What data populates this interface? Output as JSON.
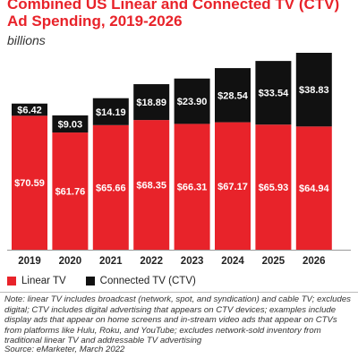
{
  "header": {
    "title": "Combined US Linear and Connected TV (CTV) Ad Spending, 2019-2026",
    "subtitle": "billions"
  },
  "legend": {
    "linear_label": "Linear TV",
    "ctv_label": "Connected TV (CTV)"
  },
  "footer": {
    "note": "Note: linear TV includes broadcast (network, spot, and syndication) and cable TV; excludes digital; CTV includes digital advertising that appears on CTV devices; examples include display ads that appear on home screens and in-stream video ads that appear on CTVs from platforms like Hulu, Roku, and YouTube; excludes network-sold inventory from traditional linear TV and addressable TV advertising",
    "source": "Source: eMarketer, March 2022"
  },
  "colors": {
    "linear": "#e8232a",
    "ctv": "#111111",
    "title": "#e8232a"
  },
  "chart_data": {
    "type": "bar",
    "stacked": true,
    "categories": [
      "2019",
      "2020",
      "2021",
      "2022",
      "2023",
      "2024",
      "2025",
      "2026"
    ],
    "series": [
      {
        "name": "Linear TV",
        "values": [
          70.59,
          61.76,
          65.66,
          68.35,
          66.31,
          67.17,
          65.93,
          64.94
        ],
        "labels": [
          "$70.59",
          "$61.76",
          "$65.66",
          "$68.35",
          "$66.31",
          "$67.17",
          "$65.93",
          "$64.94"
        ]
      },
      {
        "name": "Connected TV (CTV)",
        "values": [
          6.42,
          9.03,
          14.19,
          18.89,
          23.9,
          28.54,
          33.54,
          38.83
        ],
        "labels": [
          "$6.42",
          "$9.03",
          "$14.19",
          "$18.89",
          "$23.90",
          "$28.54",
          "$33.54",
          "$38.83"
        ]
      }
    ],
    "ylim": [
      0,
      103.77
    ],
    "grid": false,
    "legend_position": "bottom-left"
  }
}
